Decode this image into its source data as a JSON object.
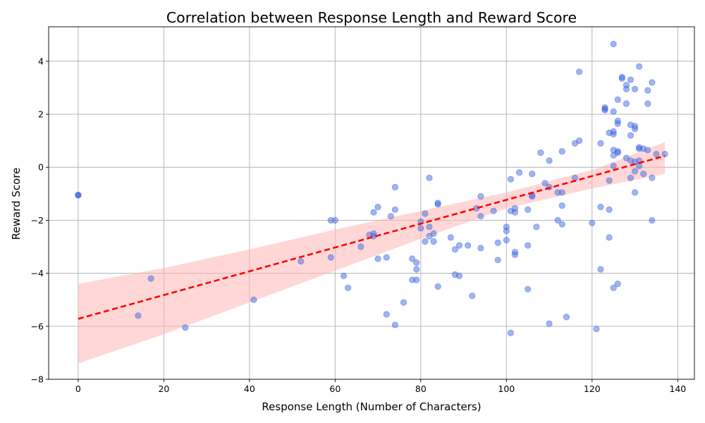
{
  "chart_data": {
    "type": "scatter",
    "title": "Correlation between Response Length and Reward Score",
    "xlabel": "Response Length (Number of Characters)",
    "ylabel": "Reward Score",
    "xlim": [
      -6.9,
      143.9
    ],
    "ylim": [
      -8,
      5.3
    ],
    "xticks": [
      0,
      20,
      40,
      60,
      80,
      100,
      120,
      140
    ],
    "yticks": [
      -8,
      -6,
      -4,
      -2,
      0,
      2,
      4
    ],
    "grid": true,
    "legend": "none",
    "colors": {
      "points": "#4169e1",
      "trend": "#ff0000",
      "band": "#ffb6b6"
    },
    "points": [
      [
        0,
        -1.05
      ],
      [
        0,
        -1.05
      ],
      [
        0,
        -1.05
      ],
      [
        14,
        -5.6
      ],
      [
        17,
        -4.2
      ],
      [
        25,
        -6.05
      ],
      [
        41,
        -5.0
      ],
      [
        52,
        -3.55
      ],
      [
        59,
        -2.0
      ],
      [
        59,
        -3.4
      ],
      [
        60,
        -2.0
      ],
      [
        62,
        -4.1
      ],
      [
        63,
        -4.55
      ],
      [
        66,
        -3.0
      ],
      [
        68,
        -2.55
      ],
      [
        69,
        -1.7
      ],
      [
        69,
        -2.5
      ],
      [
        69,
        -2.6
      ],
      [
        70,
        -1.5
      ],
      [
        70,
        -3.45
      ],
      [
        72,
        -3.4
      ],
      [
        72,
        -5.55
      ],
      [
        73,
        -1.85
      ],
      [
        74,
        -0.75
      ],
      [
        74,
        -1.6
      ],
      [
        74,
        -5.95
      ],
      [
        76,
        -5.1
      ],
      [
        78,
        -3.45
      ],
      [
        78,
        -4.25
      ],
      [
        79,
        -3.6
      ],
      [
        79,
        -3.85
      ],
      [
        79,
        -4.25
      ],
      [
        80,
        -2.05
      ],
      [
        80,
        -2.3
      ],
      [
        81,
        -1.75
      ],
      [
        81,
        -2.8
      ],
      [
        82,
        -0.4
      ],
      [
        82,
        -2.25
      ],
      [
        82,
        -2.6
      ],
      [
        83,
        -2.5
      ],
      [
        83,
        -2.8
      ],
      [
        84,
        -1.35
      ],
      [
        84,
        -1.4
      ],
      [
        84,
        -4.5
      ],
      [
        87,
        -2.65
      ],
      [
        88,
        -3.1
      ],
      [
        88,
        -4.05
      ],
      [
        89,
        -2.95
      ],
      [
        89,
        -4.1
      ],
      [
        91,
        -2.95
      ],
      [
        92,
        -4.85
      ],
      [
        93,
        -1.55
      ],
      [
        94,
        -1.1
      ],
      [
        94,
        -1.85
      ],
      [
        94,
        -3.05
      ],
      [
        97,
        -1.65
      ],
      [
        98,
        -2.85
      ],
      [
        98,
        -3.5
      ],
      [
        100,
        -2.25
      ],
      [
        100,
        -2.4
      ],
      [
        100,
        -2.75
      ],
      [
        101,
        -0.45
      ],
      [
        101,
        -1.65
      ],
      [
        101,
        -6.25
      ],
      [
        102,
        -1.55
      ],
      [
        102,
        -1.7
      ],
      [
        102,
        -3.2
      ],
      [
        102,
        -3.3
      ],
      [
        103,
        -0.2
      ],
      [
        105,
        -1.6
      ],
      [
        105,
        -2.95
      ],
      [
        105,
        -4.6
      ],
      [
        106,
        -0.25
      ],
      [
        106,
        -1.05
      ],
      [
        106,
        -1.1
      ],
      [
        107,
        -2.25
      ],
      [
        108,
        0.55
      ],
      [
        109,
        -0.6
      ],
      [
        110,
        0.25
      ],
      [
        110,
        -0.75
      ],
      [
        110,
        -5.9
      ],
      [
        112,
        -0.95
      ],
      [
        112,
        -2.0
      ],
      [
        113,
        0.6
      ],
      [
        113,
        -0.95
      ],
      [
        113,
        -1.45
      ],
      [
        113,
        -2.15
      ],
      [
        114,
        -5.65
      ],
      [
        116,
        0.9
      ],
      [
        116,
        -0.4
      ],
      [
        117,
        3.6
      ],
      [
        117,
        1.0
      ],
      [
        120,
        -2.1
      ],
      [
        121,
        -6.1
      ],
      [
        122,
        0.9
      ],
      [
        122,
        -1.5
      ],
      [
        122,
        -3.85
      ],
      [
        123,
        2.25
      ],
      [
        123,
        2.2
      ],
      [
        123,
        2.15
      ],
      [
        124,
        1.3
      ],
      [
        124,
        -0.5
      ],
      [
        124,
        -1.6
      ],
      [
        124,
        -2.65
      ],
      [
        125,
        4.65
      ],
      [
        125,
        2.1
      ],
      [
        125,
        1.35
      ],
      [
        125,
        1.25
      ],
      [
        125,
        0.65
      ],
      [
        125,
        0.45
      ],
      [
        125,
        0.05
      ],
      [
        125,
        -4.55
      ],
      [
        126,
        2.55
      ],
      [
        126,
        1.75
      ],
      [
        126,
        1.65
      ],
      [
        126,
        0.6
      ],
      [
        126,
        0.55
      ],
      [
        126,
        -4.4
      ],
      [
        127,
        3.4
      ],
      [
        127,
        3.35
      ],
      [
        128,
        3.1
      ],
      [
        128,
        2.95
      ],
      [
        128,
        2.4
      ],
      [
        128,
        0.35
      ],
      [
        129,
        3.3
      ],
      [
        129,
        1.6
      ],
      [
        129,
        1.2
      ],
      [
        129,
        0.25
      ],
      [
        129,
        -0.4
      ],
      [
        130,
        2.95
      ],
      [
        130,
        1.55
      ],
      [
        130,
        1.45
      ],
      [
        130,
        0.2
      ],
      [
        130,
        -0.15
      ],
      [
        130,
        -0.95
      ],
      [
        131,
        3.8
      ],
      [
        131,
        0.75
      ],
      [
        131,
        0.7
      ],
      [
        131,
        0.25
      ],
      [
        131,
        0.05
      ],
      [
        132,
        0.7
      ],
      [
        132,
        -0.25
      ],
      [
        133,
        2.9
      ],
      [
        133,
        2.4
      ],
      [
        133,
        0.65
      ],
      [
        134,
        3.2
      ],
      [
        134,
        -0.4
      ],
      [
        134,
        -2.0
      ],
      [
        135,
        0.5
      ],
      [
        137,
        0.5
      ]
    ],
    "trend_line": {
      "x": [
        0,
        137
      ],
      "y": [
        -5.72,
        0.43
      ]
    },
    "confidence_band": {
      "x": [
        0,
        20,
        40,
        60,
        80,
        100,
        120,
        137
      ],
      "upper": [
        -4.4,
        -3.8,
        -3.1,
        -2.35,
        -1.65,
        -0.95,
        -0.1,
        0.95
      ],
      "lower": [
        -7.4,
        -6.3,
        -5.1,
        -3.9,
        -2.7,
        -1.55,
        -0.8,
        -0.25
      ]
    }
  }
}
